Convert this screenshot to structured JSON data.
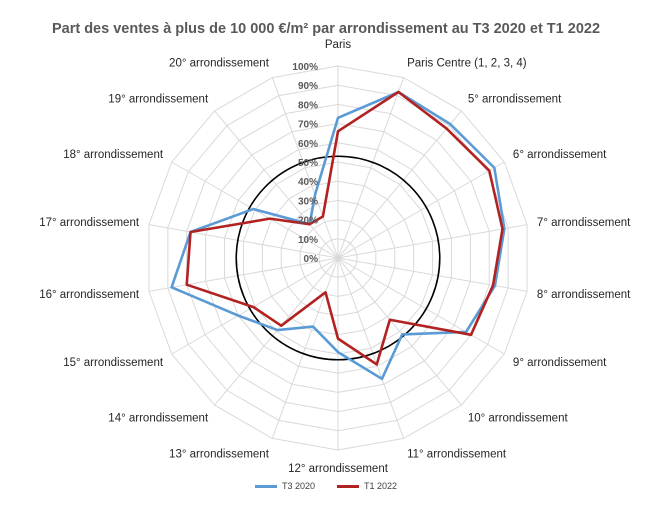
{
  "chart_data": {
    "type": "radar",
    "title": "Part des ventes à plus de 10 000 €/m² par arrondissement au T3 2020 et T1 2022",
    "categories": [
      "Paris",
      "Paris Centre (1, 2, 3, 4)",
      "5° arrondissement",
      "6° arrondissement",
      "7° arrondissement",
      "8° arrondissement",
      "9° arrondissement",
      "10° arrondissement",
      "11° arrondissement",
      "12° arrondissement",
      "13° arrondissement",
      "14° arrondissement",
      "15° arrondissement",
      "16° arrondissement",
      "17° arrondissement",
      "18° arrondissement",
      "19° arrondissement",
      "20° arrondissement"
    ],
    "ticks": [
      "0%",
      "10%",
      "20%",
      "30%",
      "40%",
      "50%",
      "60%",
      "70%",
      "80%",
      "90%",
      "100%"
    ],
    "rmax": 100,
    "reference_circle": 53,
    "grid": true,
    "legend_position": "bottom",
    "series": [
      {
        "name": "T3 2020",
        "color": "#5b9bd5",
        "values": [
          73,
          92,
          91,
          94,
          88,
          83,
          77,
          52,
          67,
          49,
          38,
          49,
          60,
          88,
          78,
          51,
          23,
          35
        ]
      },
      {
        "name": "T1 2022",
        "color": "#b22222",
        "values": [
          66,
          92,
          88,
          91,
          87,
          82,
          80,
          42,
          59,
          42,
          19,
          46,
          51,
          80,
          78,
          41,
          23,
          23
        ]
      }
    ]
  }
}
